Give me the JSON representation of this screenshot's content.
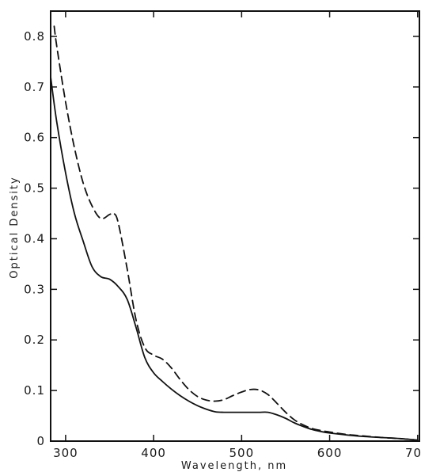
{
  "chart_data": {
    "type": "line",
    "title": "",
    "xlabel": "Wavelength, nm",
    "ylabel": "Optical Density",
    "xlim": [
      283,
      702
    ],
    "ylim": [
      0,
      0.85
    ],
    "x_ticks": [
      300,
      400,
      500,
      600,
      700
    ],
    "x_tick_labels": [
      "300",
      "400",
      "500",
      "600",
      "700"
    ],
    "y_ticks": [
      0,
      0.1,
      0.2,
      0.3,
      0.4,
      0.5,
      0.6,
      0.7,
      0.8
    ],
    "y_tick_labels": [
      "0",
      "0.1",
      "0.2",
      "0.3",
      "0.4",
      "0.5",
      "0.6",
      "0.7",
      "0.8"
    ],
    "grid": false,
    "legend": "none",
    "series": [
      {
        "style": "solid",
        "color": "#111111",
        "x": [
          283,
          290,
          300,
          310,
          320,
          330,
          340,
          350,
          360,
          370,
          380,
          390,
          400,
          410,
          420,
          430,
          440,
          450,
          460,
          470,
          480,
          490,
          500,
          510,
          520,
          530,
          540,
          550,
          560,
          570,
          580,
          590,
          600,
          620,
          640,
          660,
          680,
          700
        ],
        "y": [
          0.72,
          0.63,
          0.53,
          0.45,
          0.395,
          0.345,
          0.325,
          0.32,
          0.305,
          0.28,
          0.225,
          0.165,
          0.135,
          0.118,
          0.103,
          0.09,
          0.079,
          0.07,
          0.063,
          0.058,
          0.057,
          0.057,
          0.057,
          0.057,
          0.057,
          0.057,
          0.052,
          0.045,
          0.036,
          0.029,
          0.023,
          0.019,
          0.016,
          0.012,
          0.009,
          0.007,
          0.005,
          0.002
        ]
      },
      {
        "style": "dashed",
        "color": "#111111",
        "x": [
          287,
          290,
          300,
          310,
          320,
          330,
          340,
          350,
          355,
          360,
          370,
          380,
          390,
          400,
          410,
          420,
          430,
          440,
          450,
          460,
          470,
          480,
          490,
          500,
          510,
          520,
          530,
          540,
          550,
          560,
          570,
          580,
          590,
          600,
          620,
          640,
          660,
          680,
          700
        ],
        "y": [
          0.82,
          0.78,
          0.67,
          0.58,
          0.51,
          0.465,
          0.44,
          0.448,
          0.45,
          0.43,
          0.34,
          0.24,
          0.185,
          0.17,
          0.162,
          0.145,
          0.122,
          0.102,
          0.088,
          0.081,
          0.079,
          0.082,
          0.09,
          0.097,
          0.102,
          0.101,
          0.092,
          0.075,
          0.057,
          0.042,
          0.032,
          0.025,
          0.021,
          0.018,
          0.013,
          0.01,
          0.007,
          0.005,
          0.002
        ]
      }
    ]
  }
}
